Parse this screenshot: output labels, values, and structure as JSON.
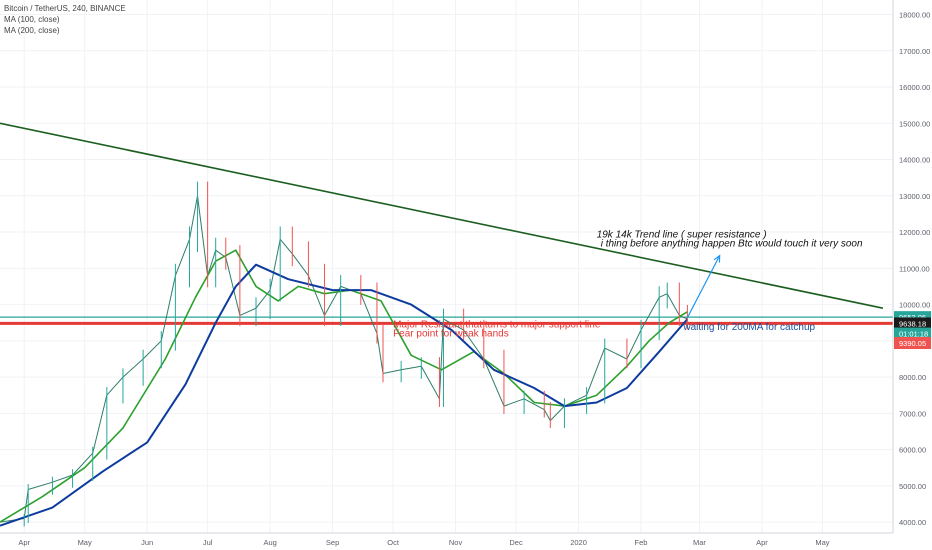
{
  "legend": {
    "symbol_line": "Bitcoin / TetherUS, 240, BINANCE",
    "ma100_line": "MA (100, close)",
    "ma200_line": "MA (200, close)"
  },
  "colors": {
    "candle_up": "#26a69a",
    "candle_down": "#ef5350",
    "ma100": "#2ca02c",
    "ma200": "#0d3b9e",
    "trendline": "#1b5e20",
    "support_line": "#e53935",
    "resistance_line": "#26a69a",
    "projection_arrow": "#2196f3",
    "annotation_red": "#e53935",
    "annotation_blue": "#1a4f9c",
    "annotation_black": "#111111"
  },
  "chart_data": {
    "type": "line",
    "title": "Bitcoin / TetherUS, 240, BINANCE",
    "y_axis": {
      "position": "right",
      "range": [
        3700,
        18400
      ],
      "ticks": [
        4000,
        5000,
        6000,
        7000,
        8000,
        9000,
        10000,
        11000,
        12000,
        13000,
        14000,
        15000,
        16000,
        17000,
        18000
      ],
      "tick_labels": [
        "4000.00",
        "5000.00",
        "6000.00",
        "7000.00",
        "8000.00",
        "9000.00",
        "10000.00",
        "11000.00",
        "12000.00",
        "13000.00",
        "14000.00",
        "15000.00",
        "16000.00",
        "17000.00",
        "18000.00"
      ]
    },
    "x_axis": {
      "range": [
        "2019-03-20",
        "2020-06-05"
      ],
      "ticks": [
        "2019-04-01",
        "2019-05-01",
        "2019-06-01",
        "2019-07-01",
        "2019-08-01",
        "2019-09-01",
        "2019-10-01",
        "2019-11-01",
        "2019-12-01",
        "2020-01-01",
        "2020-02-01",
        "2020-03-01",
        "2020-04-01",
        "2020-05-01"
      ],
      "tick_labels": [
        "Apr",
        "May",
        "Jun",
        "Jul",
        "Aug",
        "Sep",
        "Oct",
        "Nov",
        "Dec",
        "2020",
        "Feb",
        "Mar",
        "Apr",
        "May"
      ]
    },
    "grid": true,
    "series": [
      {
        "name": "Bitcoin / TetherUS, 240, BINANCE",
        "kind": "price",
        "x": [
          "2019-03-20",
          "2019-04-01",
          "2019-04-03",
          "2019-04-15",
          "2019-04-25",
          "2019-05-05",
          "2019-05-12",
          "2019-05-20",
          "2019-05-30",
          "2019-06-08",
          "2019-06-15",
          "2019-06-22",
          "2019-06-26",
          "2019-07-01",
          "2019-07-05",
          "2019-07-10",
          "2019-07-17",
          "2019-07-25",
          "2019-08-01",
          "2019-08-06",
          "2019-08-12",
          "2019-08-20",
          "2019-08-28",
          "2019-09-05",
          "2019-09-15",
          "2019-09-23",
          "2019-09-26",
          "2019-10-05",
          "2019-10-15",
          "2019-10-24",
          "2019-10-26",
          "2019-11-05",
          "2019-11-15",
          "2019-11-25",
          "2019-12-05",
          "2019-12-15",
          "2019-12-18",
          "2019-12-25",
          "2020-01-05",
          "2020-01-14",
          "2020-01-25",
          "2020-02-01",
          "2020-02-10",
          "2020-02-14",
          "2020-02-20",
          "2020-02-24"
        ],
        "y": [
          4000,
          4100,
          4900,
          5100,
          5300,
          5900,
          7500,
          8000,
          8500,
          9000,
          10800,
          11800,
          13000,
          10800,
          11500,
          11300,
          9700,
          9900,
          10400,
          11800,
          11400,
          10800,
          9700,
          10500,
          10300,
          9200,
          8100,
          8200,
          8300,
          7400,
          9600,
          9300,
          8500,
          7200,
          7400,
          7100,
          6800,
          7200,
          7500,
          8800,
          8500,
          9300,
          10200,
          10300,
          9700,
          9600
        ]
      },
      {
        "name": "MA (100, close)",
        "kind": "ma100",
        "x": [
          "2019-03-20",
          "2019-04-10",
          "2019-05-01",
          "2019-05-20",
          "2019-06-10",
          "2019-06-25",
          "2019-07-05",
          "2019-07-15",
          "2019-07-25",
          "2019-08-05",
          "2019-08-15",
          "2019-08-28",
          "2019-09-10",
          "2019-09-25",
          "2019-10-10",
          "2019-10-25",
          "2019-11-10",
          "2019-11-25",
          "2019-12-10",
          "2019-12-25",
          "2020-01-10",
          "2020-01-25",
          "2020-02-05",
          "2020-02-15",
          "2020-02-24"
        ],
        "y": [
          4000,
          4700,
          5500,
          6600,
          8500,
          10200,
          11200,
          11500,
          10500,
          10100,
          10500,
          10300,
          10400,
          10100,
          8600,
          8200,
          8700,
          8100,
          7300,
          7200,
          7500,
          8300,
          9000,
          9500,
          9800
        ]
      },
      {
        "name": "MA (200, close)",
        "kind": "ma200",
        "x": [
          "2019-03-20",
          "2019-04-15",
          "2019-05-10",
          "2019-06-01",
          "2019-06-20",
          "2019-07-05",
          "2019-07-15",
          "2019-07-25",
          "2019-08-10",
          "2019-09-01",
          "2019-09-20",
          "2019-10-10",
          "2019-10-30",
          "2019-11-20",
          "2019-12-10",
          "2019-12-25",
          "2020-01-10",
          "2020-01-25",
          "2020-02-10",
          "2020-02-24"
        ],
        "y": [
          3900,
          4400,
          5400,
          6200,
          7800,
          9500,
          10500,
          11100,
          10700,
          10400,
          10400,
          10000,
          9300,
          8200,
          7700,
          7200,
          7300,
          7700,
          8700,
          9600
        ]
      }
    ],
    "trendline": {
      "x": [
        "2019-03-20",
        "2020-05-31"
      ],
      "y": [
        15000,
        9900
      ]
    },
    "horizontal_lines": [
      {
        "name": "resistance",
        "y": 9653.05
      },
      {
        "name": "support",
        "y": 9480
      }
    ],
    "projection_arrow": {
      "x": [
        "2020-02-24",
        "2020-03-11"
      ],
      "y": [
        9638,
        11350
      ]
    },
    "price_labels": [
      {
        "text": "9653.05",
        "y": 9653.05,
        "color": "#26a69a"
      },
      {
        "text": "9638.18",
        "y": 9480,
        "color": "#1a1a1a"
      },
      {
        "text": "01:01:18",
        "y": 9200,
        "color": "#26a69a"
      },
      {
        "text": "9390.05",
        "y": 8940,
        "color": "#ef5350"
      }
    ],
    "annotations": [
      {
        "text": "19k 14k Trend line ( super resistance )",
        "x": "2020-01-10",
        "y": 11850,
        "color": "#111111",
        "style": "italic"
      },
      {
        "text": "i thing before anything happen Btc would touch it very soon",
        "x": "2020-01-12",
        "y": 11600,
        "color": "#111111",
        "style": "italic"
      },
      {
        "text": "Major Resistant that turns to major support line",
        "x": "2019-10-01",
        "y": 9370,
        "color": "#e53935",
        "style": "normal"
      },
      {
        "text": "Fear point for weak hands",
        "x": "2019-10-01",
        "y": 9120,
        "color": "#e53935",
        "style": "normal"
      },
      {
        "text": "waiting for 200MA for catchup",
        "x": "2020-02-22",
        "y": 9300,
        "color": "#1a4f9c",
        "style": "normal"
      }
    ]
  }
}
